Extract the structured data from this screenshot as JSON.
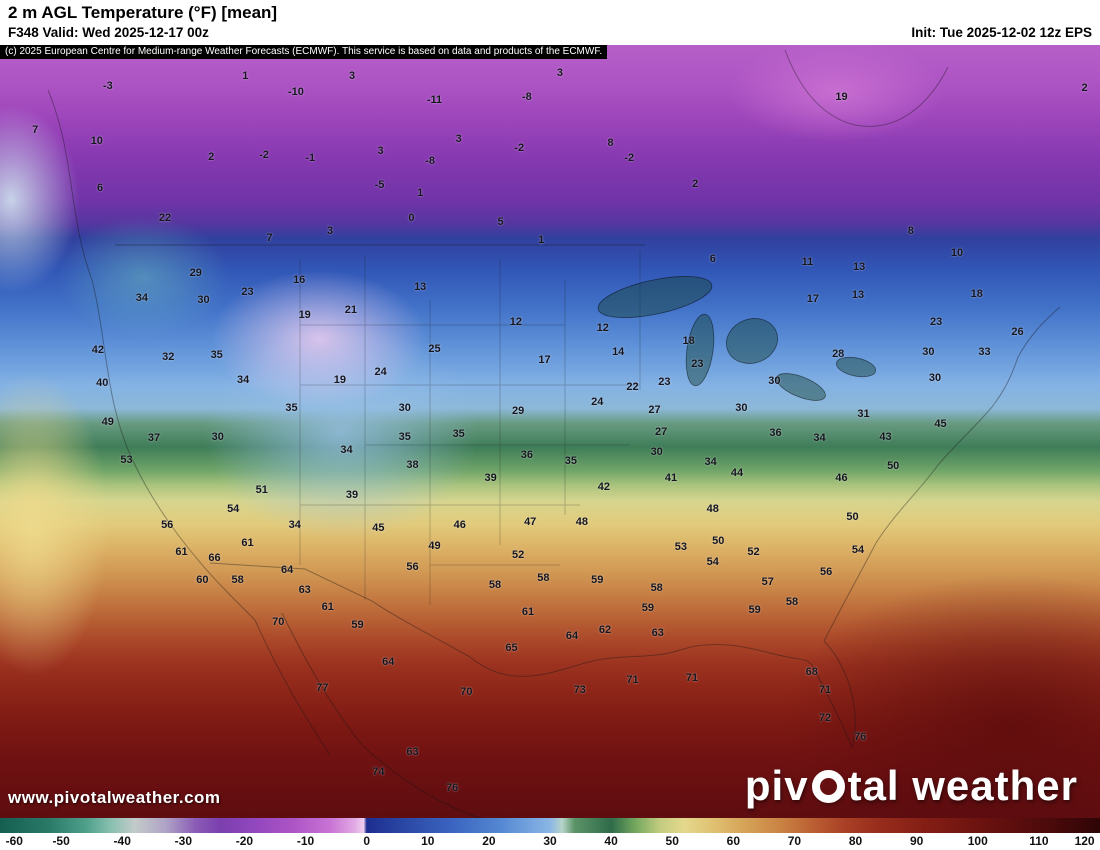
{
  "header": {
    "title": "2 m AGL Temperature (°F) [mean]",
    "valid": "F348 Valid: Wed 2025-12-17 00z",
    "init": "Init: Tue 2025-12-02 12z EPS",
    "copyright": "(c) 2025 European Centre for Medium-range Weather Forecasts (ECMWF). This service is based on data and products of the ECMWF."
  },
  "watermark": {
    "url": "www.pivotalweather.com",
    "brand_part1": "piv",
    "brand_part2": "tal weather"
  },
  "chart_data": {
    "type": "heatmap",
    "title": "2 m AGL Temperature (°F) [mean]",
    "units": "°F",
    "colorbar": {
      "min": -60,
      "max": 120,
      "ticks": [
        -60,
        -50,
        -40,
        -30,
        -20,
        -10,
        0,
        10,
        20,
        30,
        40,
        50,
        60,
        70,
        80,
        90,
        100,
        110,
        120
      ],
      "stops": [
        {
          "v": -60,
          "c": "#155f50"
        },
        {
          "v": -52,
          "c": "#2a7a68"
        },
        {
          "v": -46,
          "c": "#4d9f8a"
        },
        {
          "v": -42,
          "c": "#86bfae"
        },
        {
          "v": -38,
          "c": "#c2cbc9"
        },
        {
          "v": -33,
          "c": "#b0a4c6"
        },
        {
          "v": -28,
          "c": "#8a5cb6"
        },
        {
          "v": -24,
          "c": "#7b3fae"
        },
        {
          "v": -18,
          "c": "#9347be"
        },
        {
          "v": -12,
          "c": "#ad54c6"
        },
        {
          "v": -6,
          "c": "#c873d4"
        },
        {
          "v": -2,
          "c": "#e2a9e4"
        },
        {
          "v": -0.5,
          "c": "#f0d0f0"
        },
        {
          "v": 0,
          "c": "#1d2e90"
        },
        {
          "v": 6,
          "c": "#2a47a4"
        },
        {
          "v": 14,
          "c": "#3a64c0"
        },
        {
          "v": 22,
          "c": "#5488d2"
        },
        {
          "v": 30,
          "c": "#8ab6e6"
        },
        {
          "v": 32,
          "c": "#b6d4c8"
        },
        {
          "v": 34,
          "c": "#5c9468"
        },
        {
          "v": 40,
          "c": "#2f6b4a"
        },
        {
          "v": 44,
          "c": "#74a85e"
        },
        {
          "v": 48,
          "c": "#c2cc80"
        },
        {
          "v": 52,
          "c": "#e4d88c"
        },
        {
          "v": 57,
          "c": "#dfbf70"
        },
        {
          "v": 62,
          "c": "#d5a257"
        },
        {
          "v": 68,
          "c": "#c98142"
        },
        {
          "v": 73,
          "c": "#bb5f33"
        },
        {
          "v": 78,
          "c": "#aa4126"
        },
        {
          "v": 84,
          "c": "#972c1c"
        },
        {
          "v": 92,
          "c": "#821d14"
        },
        {
          "v": 100,
          "c": "#6d1310"
        },
        {
          "v": 108,
          "c": "#560c0c"
        },
        {
          "v": 116,
          "c": "#3d0708"
        },
        {
          "v": 120,
          "c": "#2e0506"
        }
      ]
    },
    "station_values": [
      [
        -3,
        9.8,
        5.3
      ],
      [
        1,
        22.3,
        4.0
      ],
      [
        -10,
        26.9,
        6.1
      ],
      [
        3,
        32.0,
        4.0
      ],
      [
        -11,
        39.5,
        7.1
      ],
      [
        -8,
        47.9,
        6.7
      ],
      [
        3,
        50.9,
        3.6
      ],
      [
        19,
        76.5,
        6.7
      ],
      [
        2,
        98.6,
        5.6
      ],
      [
        7,
        3.2,
        11.0
      ],
      [
        10,
        8.8,
        12.4
      ],
      [
        2,
        19.2,
        14.5
      ],
      [
        -2,
        24.0,
        14.2
      ],
      [
        -1,
        28.2,
        14.6
      ],
      [
        3,
        34.6,
        13.7
      ],
      [
        -8,
        39.1,
        15.0
      ],
      [
        3,
        41.7,
        12.2
      ],
      [
        -2,
        47.2,
        13.3
      ],
      [
        8,
        55.5,
        12.7
      ],
      [
        -2,
        57.2,
        14.6
      ],
      [
        6,
        9.1,
        18.5
      ],
      [
        -5,
        34.5,
        18.1
      ],
      [
        1,
        38.2,
        19.1
      ],
      [
        2,
        63.2,
        18.0
      ],
      [
        22,
        15.0,
        22.4
      ],
      [
        0,
        37.4,
        22.4
      ],
      [
        5,
        45.5,
        22.9
      ],
      [
        7,
        24.5,
        25.0
      ],
      [
        3,
        30.0,
        24.1
      ],
      [
        1,
        49.2,
        25.2
      ],
      [
        6,
        64.8,
        27.7
      ],
      [
        11,
        73.4,
        28.1
      ],
      [
        13,
        78.1,
        28.7
      ],
      [
        8,
        82.8,
        24.1
      ],
      [
        10,
        87.0,
        26.9
      ],
      [
        29,
        17.8,
        29.5
      ],
      [
        16,
        27.2,
        30.4
      ],
      [
        23,
        22.5,
        32.0
      ],
      [
        34,
        12.9,
        32.7
      ],
      [
        30,
        18.5,
        33.0
      ],
      [
        19,
        27.7,
        34.9
      ],
      [
        21,
        31.9,
        34.3
      ],
      [
        13,
        38.2,
        31.3
      ],
      [
        12,
        46.9,
        35.8
      ],
      [
        12,
        54.8,
        36.6
      ],
      [
        14,
        56.2,
        39.7
      ],
      [
        17,
        73.9,
        32.9
      ],
      [
        13,
        78.0,
        32.3
      ],
      [
        18,
        88.8,
        32.2
      ],
      [
        23,
        85.1,
        35.8
      ],
      [
        26,
        92.5,
        37.1
      ],
      [
        42,
        8.9,
        39.5
      ],
      [
        32,
        15.3,
        40.4
      ],
      [
        35,
        19.7,
        40.1
      ],
      [
        25,
        39.5,
        39.3
      ],
      [
        17,
        49.5,
        40.8
      ],
      [
        18,
        62.6,
        38.3
      ],
      [
        23,
        63.4,
        41.3
      ],
      [
        28,
        76.2,
        40.0
      ],
      [
        30,
        84.4,
        39.7
      ],
      [
        33,
        89.5,
        39.7
      ],
      [
        40,
        9.3,
        43.7
      ],
      [
        34,
        22.1,
        43.3
      ],
      [
        19,
        30.9,
        43.3
      ],
      [
        24,
        34.6,
        42.3
      ],
      [
        22,
        57.5,
        44.2
      ],
      [
        23,
        60.4,
        43.6
      ],
      [
        30,
        70.4,
        43.5
      ],
      [
        30,
        85.0,
        43.1
      ],
      [
        31,
        78.5,
        47.7
      ],
      [
        49,
        9.8,
        48.8
      ],
      [
        35,
        26.5,
        47.0
      ],
      [
        30,
        36.8,
        47.0
      ],
      [
        29,
        47.1,
        47.3
      ],
      [
        24,
        54.3,
        46.2
      ],
      [
        27,
        59.5,
        47.2
      ],
      [
        30,
        67.4,
        47.0
      ],
      [
        36,
        70.5,
        50.2
      ],
      [
        37,
        14.0,
        50.8
      ],
      [
        30,
        19.8,
        50.7
      ],
      [
        34,
        31.5,
        52.4
      ],
      [
        35,
        36.8,
        50.7
      ],
      [
        35,
        41.7,
        50.3
      ],
      [
        27,
        60.1,
        50.1
      ],
      [
        34,
        74.5,
        50.8
      ],
      [
        43,
        80.5,
        50.7
      ],
      [
        45,
        85.5,
        49.0
      ],
      [
        53,
        11.5,
        53.7
      ],
      [
        38,
        37.5,
        54.3
      ],
      [
        36,
        47.9,
        53.0
      ],
      [
        35,
        51.9,
        53.8
      ],
      [
        30,
        59.7,
        52.6
      ],
      [
        34,
        64.6,
        53.9
      ],
      [
        39,
        44.6,
        56.0
      ],
      [
        42,
        54.9,
        57.2
      ],
      [
        41,
        61.0,
        56.0
      ],
      [
        44,
        67.0,
        55.4
      ],
      [
        46,
        76.5,
        56.0
      ],
      [
        50,
        81.2,
        54.5
      ],
      [
        51,
        23.8,
        57.6
      ],
      [
        39,
        32.0,
        58.2
      ],
      [
        54,
        21.2,
        60.0
      ],
      [
        56,
        15.2,
        62.1
      ],
      [
        48,
        52.9,
        61.7
      ],
      [
        47,
        48.2,
        61.7
      ],
      [
        46,
        41.8,
        62.1
      ],
      [
        34,
        26.8,
        62.1
      ],
      [
        45,
        34.4,
        62.5
      ],
      [
        48,
        64.8,
        60.0
      ],
      [
        50,
        65.3,
        64.2
      ],
      [
        53,
        61.9,
        64.9
      ],
      [
        50,
        77.5,
        61.1
      ],
      [
        49,
        39.5,
        64.8
      ],
      [
        52,
        47.1,
        66.0
      ],
      [
        54,
        64.8,
        66.9
      ],
      [
        52,
        68.5,
        65.6
      ],
      [
        54,
        78.0,
        65.3
      ],
      [
        61,
        16.5,
        65.6
      ],
      [
        66,
        19.5,
        66.4
      ],
      [
        61,
        22.5,
        64.4
      ],
      [
        56,
        37.5,
        67.5
      ],
      [
        60,
        18.4,
        69.2
      ],
      [
        58,
        21.6,
        69.2
      ],
      [
        64,
        26.1,
        67.9
      ],
      [
        58,
        45.0,
        69.9
      ],
      [
        58,
        49.4,
        68.9
      ],
      [
        59,
        54.3,
        69.2
      ],
      [
        58,
        59.7,
        70.2
      ],
      [
        57,
        69.8,
        69.5
      ],
      [
        56,
        75.1,
        68.2
      ],
      [
        63,
        27.7,
        70.5
      ],
      [
        61,
        29.8,
        72.7
      ],
      [
        70,
        25.3,
        74.6
      ],
      [
        59,
        32.5,
        75.0
      ],
      [
        61,
        48.0,
        73.3
      ],
      [
        62,
        55.0,
        75.7
      ],
      [
        59,
        58.9,
        72.8
      ],
      [
        59,
        68.6,
        73.1
      ],
      [
        58,
        72.0,
        72.1
      ],
      [
        64,
        52.0,
        76.5
      ],
      [
        63,
        59.8,
        76.1
      ],
      [
        65,
        46.5,
        78.0
      ],
      [
        64,
        35.3,
        79.8
      ],
      [
        70,
        42.4,
        83.7
      ],
      [
        77,
        29.3,
        83.2
      ],
      [
        73,
        52.7,
        83.4
      ],
      [
        71,
        57.5,
        82.1
      ],
      [
        71,
        62.9,
        81.9
      ],
      [
        68,
        73.8,
        81.1
      ],
      [
        71,
        75.0,
        83.4
      ],
      [
        72,
        75.0,
        87.1
      ],
      [
        76,
        78.2,
        89.5
      ],
      [
        63,
        37.5,
        91.5
      ],
      [
        74,
        34.4,
        94.0
      ],
      [
        76,
        41.1,
        96.1
      ]
    ]
  }
}
